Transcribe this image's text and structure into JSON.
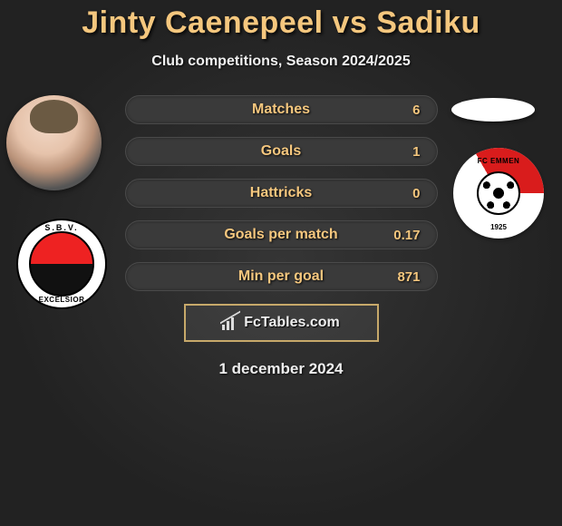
{
  "header": {
    "title": "Jinty Caenepeel vs Sadiku",
    "subtitle": "Club competitions, Season 2024/2025",
    "title_color": "#f5c77e",
    "subtitle_color": "#f0f0f0"
  },
  "left_player": {
    "club_top_text": "S.B.V.",
    "club_name": "EXCELSIOR"
  },
  "right_player": {
    "club_label": "FC EMMEN",
    "club_year": "1925"
  },
  "stats": [
    {
      "label": "Matches",
      "value": "6"
    },
    {
      "label": "Goals",
      "value": "1"
    },
    {
      "label": "Hattricks",
      "value": "0"
    },
    {
      "label": "Goals per match",
      "value": "0.17"
    },
    {
      "label": "Min per goal",
      "value": "871"
    }
  ],
  "styling": {
    "pill_bg": "#3a3a3a",
    "pill_border": "#4a4a4a",
    "accent": "#f5c77e",
    "brand_border": "#c7a96a",
    "background": "#2a2a2a",
    "pill_width": 345,
    "pill_height": 32,
    "pill_gap": 14,
    "brand_box_width": 215,
    "brand_box_height": 42
  },
  "brand": {
    "text": "FcTables.com"
  },
  "footer": {
    "date": "1 december 2024"
  }
}
